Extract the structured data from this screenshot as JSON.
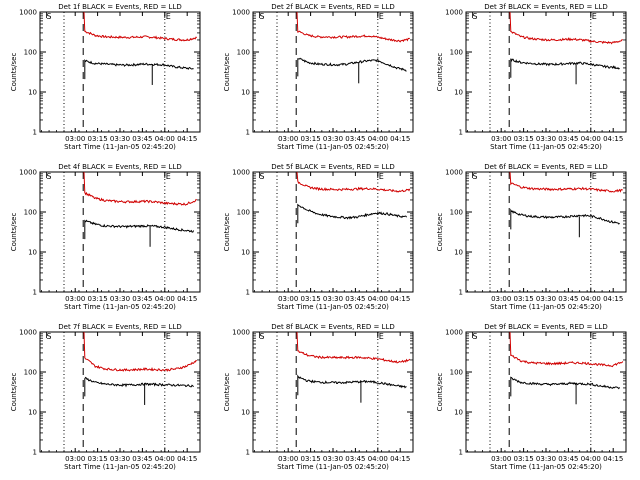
{
  "chart_data": [
    {
      "type": "line",
      "title": "Det 1f BLACK = Events, RED = LLD",
      "xlabel": "Start Time (11-Jan-05 02:45:20)",
      "ylabel": "Counts/sec",
      "yscale": "log",
      "ylim": [
        1,
        1000
      ],
      "x_ticks": [
        "03:00",
        "03:15",
        "03:30",
        "03:45",
        "04:00",
        "04:15"
      ],
      "y_ticks": [
        "1",
        "10",
        "100",
        "1000"
      ],
      "markers": {
        "S": "S",
        "E": "E"
      },
      "series": [
        {
          "color": "#d00000",
          "values": [
            330,
            260,
            240,
            235,
            232,
            235,
            240,
            230,
            215,
            205,
            200,
            230
          ]
        },
        {
          "color": "#000000",
          "values": [
            60,
            52,
            50,
            48,
            47,
            48,
            50,
            49,
            48,
            43,
            40,
            38
          ]
        }
      ],
      "dip": 0.62
    },
    {
      "type": "line",
      "title": "Det 2f BLACK = Events, RED = LLD",
      "xlabel": "Start Time (11-Jan-05 02:45:20)",
      "ylabel": "Counts/sec",
      "yscale": "log",
      "ylim": [
        1,
        1000
      ],
      "x_ticks": [
        "03:00",
        "03:15",
        "03:30",
        "03:45",
        "04:00",
        "04:15"
      ],
      "y_ticks": [
        "1",
        "10",
        "100",
        "1000"
      ],
      "markers": {
        "S": "S",
        "E": "E"
      },
      "series": [
        {
          "color": "#d00000",
          "values": [
            330,
            260,
            240,
            238,
            236,
            240,
            248,
            255,
            230,
            205,
            190,
            210
          ]
        },
        {
          "color": "#000000",
          "values": [
            70,
            55,
            50,
            49,
            48,
            50,
            55,
            60,
            62,
            50,
            40,
            35
          ]
        }
      ],
      "dip": 0.56
    },
    {
      "type": "line",
      "title": "Det 3f BLACK = Events, RED = LLD",
      "xlabel": "Start Time (11-Jan-05 02:45:20)",
      "ylabel": "Counts/sec",
      "yscale": "log",
      "ylim": [
        1,
        1000
      ],
      "x_ticks": [
        "03:00",
        "03:15",
        "03:30",
        "03:45",
        "04:00",
        "04:15"
      ],
      "y_ticks": [
        "1",
        "10",
        "100",
        "1000"
      ],
      "markers": {
        "S": "S",
        "E": "E"
      },
      "series": [
        {
          "color": "#d00000",
          "values": [
            320,
            240,
            215,
            205,
            200,
            205,
            210,
            200,
            185,
            175,
            170,
            195
          ]
        },
        {
          "color": "#000000",
          "values": [
            65,
            55,
            52,
            50,
            49,
            50,
            52,
            53,
            50,
            45,
            42,
            40
          ]
        }
      ],
      "dip": 0.6
    },
    {
      "type": "line",
      "title": "Det 4f BLACK = Events, RED = LLD",
      "xlabel": "Start Time (11-Jan-05 02:45:20)",
      "ylabel": "Counts/sec",
      "yscale": "log",
      "ylim": [
        1,
        1000
      ],
      "x_ticks": [
        "03:00",
        "03:15",
        "03:30",
        "03:45",
        "04:00",
        "04:15"
      ],
      "y_ticks": [
        "1",
        "10",
        "100",
        "1000"
      ],
      "markers": {
        "S": "S",
        "E": "E"
      },
      "series": [
        {
          "color": "#d00000",
          "values": [
            300,
            220,
            195,
            185,
            180,
            182,
            185,
            178,
            165,
            160,
            158,
            200
          ]
        },
        {
          "color": "#000000",
          "values": [
            60,
            50,
            45,
            44,
            43,
            44,
            45,
            44,
            42,
            38,
            35,
            33
          ]
        }
      ],
      "dip": 0.6
    },
    {
      "type": "line",
      "title": "Det 5f BLACK = Events, RED = LLD",
      "xlabel": "Start Time (11-Jan-05 02:45:20)",
      "ylabel": "Counts/sec",
      "yscale": "log",
      "ylim": [
        1,
        1000
      ],
      "x_ticks": [
        "03:00",
        "03:15",
        "03:30",
        "03:45",
        "04:00",
        "04:15"
      ],
      "y_ticks": [
        "1",
        "10",
        "100",
        "1000"
      ],
      "markers": {
        "S": "S",
        "E": "E"
      },
      "series": [
        {
          "color": "#d00000",
          "values": [
            560,
            420,
            380,
            370,
            365,
            370,
            380,
            385,
            370,
            345,
            330,
            360
          ]
        },
        {
          "color": "#000000",
          "values": [
            150,
            110,
            90,
            80,
            75,
            72,
            75,
            85,
            95,
            90,
            80,
            75
          ]
        }
      ],
      "dip": -1
    },
    {
      "type": "line",
      "title": "Det 6f BLACK = Events, RED = LLD",
      "xlabel": "Start Time (11-Jan-05 02:45:20)",
      "ylabel": "Counts/sec",
      "yscale": "log",
      "ylim": [
        1,
        1000
      ],
      "x_ticks": [
        "03:00",
        "03:15",
        "03:30",
        "03:45",
        "04:00",
        "04:15"
      ],
      "y_ticks": [
        "1",
        "10",
        "100",
        "1000"
      ],
      "markers": {
        "S": "S",
        "E": "E"
      },
      "series": [
        {
          "color": "#d00000",
          "values": [
            520,
            420,
            385,
            375,
            370,
            372,
            380,
            385,
            370,
            345,
            330,
            350
          ]
        },
        {
          "color": "#000000",
          "values": [
            105,
            85,
            78,
            75,
            74,
            75,
            78,
            82,
            80,
            70,
            58,
            52
          ]
        }
      ],
      "dip": 0.63
    },
    {
      "type": "line",
      "title": "Det 7f BLACK = Events, RED = LLD",
      "xlabel": "Start Time (11-Jan-05 02:45:20)",
      "ylabel": "Counts/sec",
      "yscale": "log",
      "ylim": [
        1,
        1000
      ],
      "x_ticks": [
        "03:00",
        "03:15",
        "03:30",
        "03:45",
        "04:00",
        "04:15"
      ],
      "y_ticks": [
        "1",
        "10",
        "100",
        "1000"
      ],
      "markers": {
        "S": "S",
        "E": "E"
      },
      "series": [
        {
          "color": "#d00000",
          "values": [
            220,
            140,
            120,
            115,
            112,
            115,
            118,
            115,
            112,
            120,
            140,
            190
          ]
        },
        {
          "color": "#000000",
          "values": [
            70,
            55,
            50,
            48,
            47,
            48,
            50,
            49,
            48,
            47,
            46,
            45
          ]
        }
      ],
      "dip": 0.55
    },
    {
      "type": "line",
      "title": "Det 8f BLACK = Events, RED = LLD",
      "xlabel": "Start Time (11-Jan-05 02:45:20)",
      "ylabel": "Counts/sec",
      "yscale": "log",
      "ylim": [
        1,
        1000
      ],
      "x_ticks": [
        "03:00",
        "03:15",
        "03:30",
        "03:45",
        "04:00",
        "04:15"
      ],
      "y_ticks": [
        "1",
        "10",
        "100",
        "1000"
      ],
      "markers": {
        "S": "S",
        "E": "E"
      },
      "series": [
        {
          "color": "#d00000",
          "values": [
            330,
            260,
            235,
            230,
            228,
            230,
            232,
            222,
            210,
            190,
            175,
            200
          ]
        },
        {
          "color": "#000000",
          "values": [
            75,
            60,
            56,
            55,
            54,
            55,
            57,
            58,
            55,
            50,
            45,
            42
          ]
        }
      ],
      "dip": 0.58
    },
    {
      "type": "line",
      "title": "Det 9f BLACK = Events, RED = LLD",
      "xlabel": "Start Time (11-Jan-05 02:45:20)",
      "ylabel": "Counts/sec",
      "yscale": "log",
      "ylim": [
        1,
        1000
      ],
      "x_ticks": [
        "03:00",
        "03:15",
        "03:30",
        "03:45",
        "04:00",
        "04:15"
      ],
      "y_ticks": [
        "1",
        "10",
        "100",
        "1000"
      ],
      "markers": {
        "S": "S",
        "E": "E"
      },
      "series": [
        {
          "color": "#d00000",
          "values": [
            260,
            190,
            170,
            165,
            162,
            165,
            170,
            168,
            160,
            150,
            145,
            180
          ]
        },
        {
          "color": "#000000",
          "values": [
            70,
            55,
            52,
            50,
            49,
            50,
            52,
            51,
            50,
            45,
            42,
            40
          ]
        }
      ],
      "dip": 0.6
    }
  ]
}
